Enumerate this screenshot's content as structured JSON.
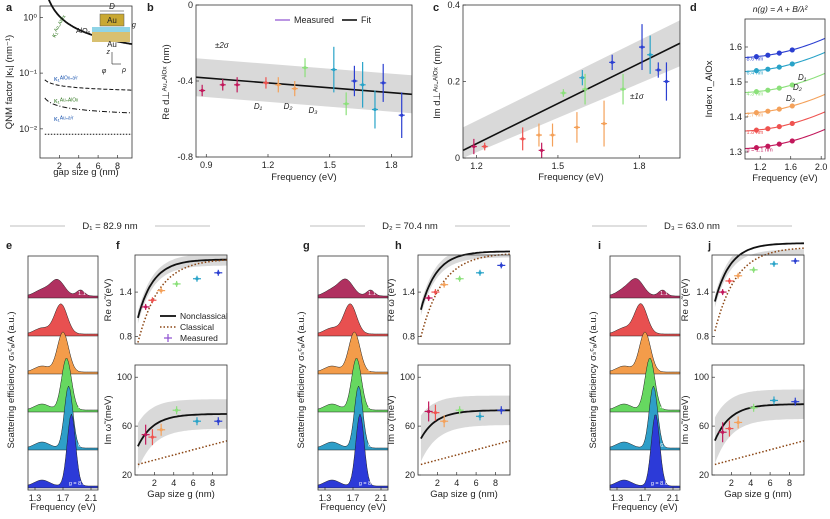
{
  "colors": {
    "gap_palette": [
      "#c2185b",
      "#ef5350",
      "#f4a15a",
      "#8be07a",
      "#29a3c8",
      "#2b3fd1"
    ],
    "band": "#d9d9d9",
    "fit": "#111111",
    "classical": "#8b4513",
    "dist_pal": [
      "#b03060",
      "#e85050",
      "#f39c4a",
      "#66d860",
      "#2e9ec8",
      "#2c3ad8"
    ]
  },
  "chart_data": [
    {
      "panel": "a",
      "type": "line",
      "xlabel": "gap size g (nm)",
      "ylabel": "QNM factor |κ₁| (nm⁻¹)",
      "xlim": [
        0,
        9.5
      ],
      "ylim_log": [
        0.003,
        1.6
      ],
      "xticks": [
        2,
        4,
        6,
        8
      ],
      "yticks": [
        {
          "v": 1,
          "t": "10⁰"
        },
        {
          "v": 0.1,
          "t": "10⁻¹"
        },
        {
          "v": 0.01,
          "t": "10⁻²"
        }
      ],
      "series_labels": [
        "κ₁ᴬᵘ-ᴬˡᴼˣ",
        "κ₁ᴬˡᴼˣ-ᵃⁱʳ",
        "κ₁ᴬᵘ-ᴬˡᴼˣ",
        "κ₁ᴬᵘ-ᵃⁱʳ"
      ],
      "inset": {
        "au": "Au",
        "alox": "AlOₓ",
        "au2": "Au",
        "d": "D",
        "g": "g",
        "phi": "φ",
        "rho": "ρ",
        "z": "z"
      }
    },
    {
      "panel": "b",
      "type": "scatter+line",
      "xlabel": "Frequency (eV)",
      "ylabel": "Re d⊥ᴬᵘ-ᴬˡᴼˣ (nm)",
      "xlim": [
        0.85,
        1.9
      ],
      "ylim": [
        -0.8,
        0.0
      ],
      "xticks": [
        0.9,
        1.2,
        1.5,
        1.8
      ],
      "yticks": [
        0,
        -0.4,
        -0.8
      ],
      "fit": {
        "x0": 0.85,
        "y0": -0.38,
        "x1": 1.9,
        "y1": -0.47
      },
      "band_half": 0.1,
      "band_label": "±2σ",
      "legend": {
        "measured": "Measured",
        "fit": "Fit"
      },
      "ann": [
        "D₁",
        "D₂",
        "D₃"
      ],
      "points": [
        {
          "x": 0.88,
          "y": -0.45,
          "e": 0.03,
          "c": 0
        },
        {
          "x": 0.98,
          "y": -0.42,
          "e": 0.03,
          "c": 0
        },
        {
          "x": 1.05,
          "y": -0.42,
          "e": 0.04,
          "c": 0
        },
        {
          "x": 1.19,
          "y": -0.41,
          "e": 0.03,
          "c": 1
        },
        {
          "x": 1.25,
          "y": -0.42,
          "e": 0.04,
          "c": 2
        },
        {
          "x": 1.33,
          "y": -0.44,
          "e": 0.04,
          "c": 2
        },
        {
          "x": 1.38,
          "y": -0.33,
          "e": 0.05,
          "c": 3
        },
        {
          "x": 1.52,
          "y": -0.34,
          "e": 0.12,
          "c": 4
        },
        {
          "x": 1.58,
          "y": -0.52,
          "e": 0.06,
          "c": 3
        },
        {
          "x": 1.62,
          "y": -0.4,
          "e": 0.08,
          "c": 5
        },
        {
          "x": 1.66,
          "y": -0.42,
          "e": 0.12,
          "c": 4
        },
        {
          "x": 1.72,
          "y": -0.55,
          "e": 0.1,
          "c": 4
        },
        {
          "x": 1.76,
          "y": -0.41,
          "e": 0.1,
          "c": 5
        },
        {
          "x": 1.85,
          "y": -0.58,
          "e": 0.12,
          "c": 5
        }
      ]
    },
    {
      "panel": "c",
      "type": "scatter+line",
      "xlabel": "Frequency (eV)",
      "ylabel": "Im d⊥ᴬᵘ-ᴬˡᴼˣ (nm)",
      "xlim": [
        1.15,
        1.95
      ],
      "ylim": [
        0.0,
        0.4
      ],
      "xticks": [
        1.2,
        1.5,
        1.8
      ],
      "yticks": [
        0,
        0.2,
        0.4
      ],
      "fit": {
        "x0": 1.15,
        "y0": 0.02,
        "x1": 1.95,
        "y1": 0.3
      },
      "band_half": 0.06,
      "band_label": "±1σ",
      "points": [
        {
          "x": 1.19,
          "y": 0.03,
          "e": 0.02,
          "c": 0
        },
        {
          "x": 1.23,
          "y": 0.03,
          "e": 0.01,
          "c": 1
        },
        {
          "x": 1.37,
          "y": 0.05,
          "e": 0.03,
          "c": 1
        },
        {
          "x": 1.43,
          "y": 0.06,
          "e": 0.03,
          "c": 2
        },
        {
          "x": 1.44,
          "y": 0.02,
          "e": 0.02,
          "c": 0
        },
        {
          "x": 1.48,
          "y": 0.06,
          "e": 0.03,
          "c": 2
        },
        {
          "x": 1.52,
          "y": 0.17,
          "e": 0.01,
          "c": 3
        },
        {
          "x": 1.57,
          "y": 0.08,
          "e": 0.04,
          "c": 2
        },
        {
          "x": 1.59,
          "y": 0.21,
          "e": 0.02,
          "c": 4
        },
        {
          "x": 1.6,
          "y": 0.18,
          "e": 0.04,
          "c": 3
        },
        {
          "x": 1.67,
          "y": 0.09,
          "e": 0.06,
          "c": 2
        },
        {
          "x": 1.7,
          "y": 0.25,
          "e": 0.02,
          "c": 5
        },
        {
          "x": 1.74,
          "y": 0.18,
          "e": 0.04,
          "c": 3
        },
        {
          "x": 1.81,
          "y": 0.29,
          "e": 0.06,
          "c": 5
        },
        {
          "x": 1.84,
          "y": 0.27,
          "e": 0.05,
          "c": 4
        },
        {
          "x": 1.87,
          "y": 0.23,
          "e": 0.02,
          "c": 5
        },
        {
          "x": 1.9,
          "y": 0.2,
          "e": 0.05,
          "c": 5
        }
      ]
    },
    {
      "panel": "d",
      "type": "line",
      "title": "n(g) = A + B/λ²",
      "xlabel": "Frequency (eV)",
      "ylabel": "Index n_AlOx",
      "xlim": [
        1.0,
        2.05
      ],
      "ylim": [
        1.28,
        1.68
      ],
      "xticks": [
        1.2,
        1.6,
        2.0
      ],
      "yticks": [
        1.3,
        1.4,
        1.5,
        1.6
      ],
      "gap_labels": [
        "g = 1.1 nm",
        "1.8 nm",
        "2.7 nm",
        "4.3 nm",
        "6.4 nm",
        "8.6 nm"
      ],
      "d_labels": [
        "D₁",
        "D₂",
        "D₃"
      ],
      "curves_base": [
        1.31,
        1.36,
        1.41,
        1.47,
        1.53,
        1.57
      ]
    },
    {
      "type": "section",
      "labels": [
        "D₁ = 82.9 nm",
        "D₂ = 70.4 nm",
        "D₃ = 63.0 nm"
      ]
    },
    {
      "type": "scattering_spectra",
      "panels": [
        "e",
        "g",
        "i"
      ],
      "ylabel": "Scattering efficiency σₛᶜₐ/A (a.u.)",
      "xlabel": "Frequency (eV)",
      "xticks": [
        "1.3",
        "1.7",
        "2.1"
      ],
      "gap_labels": [
        "1.1 nm",
        "1.8 nm",
        "2.7 nm",
        "4.3 nm",
        "6.4 nm",
        "g = 8.6 nm"
      ]
    },
    {
      "type": "re_im_omega",
      "panels": [
        "f",
        "h",
        "j"
      ],
      "re_ylabel": "Re ω̃ (eV)",
      "im_ylabel": "Im ω̃ (meV)",
      "xlabel": "Gap size g (nm)",
      "re_ylim": [
        0.7,
        1.9
      ],
      "im_ylim": [
        20,
        110
      ],
      "xticks": [
        2,
        4,
        6,
        8
      ],
      "re_yticks": [
        0.8,
        1.4
      ],
      "im_yticks": [
        20,
        60,
        100
      ],
      "legend": [
        "Nonclassical",
        "Classical",
        "Measured"
      ],
      "re_measured": [
        [
          {
            "g": 1.1,
            "y": 1.2
          },
          {
            "g": 1.8,
            "y": 1.29
          },
          {
            "g": 2.7,
            "y": 1.42
          },
          {
            "g": 4.3,
            "y": 1.51
          },
          {
            "g": 6.4,
            "y": 1.58
          },
          {
            "g": 8.6,
            "y": 1.66
          }
        ],
        [
          {
            "g": 1.1,
            "y": 1.32
          },
          {
            "g": 1.8,
            "y": 1.4
          },
          {
            "g": 2.7,
            "y": 1.5
          },
          {
            "g": 4.3,
            "y": 1.58
          },
          {
            "g": 6.4,
            "y": 1.66
          },
          {
            "g": 8.6,
            "y": 1.76
          }
        ],
        [
          {
            "g": 1.1,
            "y": 1.4
          },
          {
            "g": 1.8,
            "y": 1.55
          },
          {
            "g": 2.7,
            "y": 1.62
          },
          {
            "g": 4.3,
            "y": 1.7
          },
          {
            "g": 6.4,
            "y": 1.78
          },
          {
            "g": 8.6,
            "y": 1.82
          }
        ]
      ],
      "im_measured": [
        [
          {
            "g": 1.1,
            "y": 53
          },
          {
            "g": 1.8,
            "y": 51
          },
          {
            "g": 2.7,
            "y": 57
          },
          {
            "g": 4.3,
            "y": 73
          },
          {
            "g": 6.4,
            "y": 64
          },
          {
            "g": 8.6,
            "y": 64
          }
        ],
        [
          {
            "g": 1.1,
            "y": 72
          },
          {
            "g": 1.8,
            "y": 71
          },
          {
            "g": 2.7,
            "y": 64
          },
          {
            "g": 4.3,
            "y": 73
          },
          {
            "g": 6.4,
            "y": 68
          },
          {
            "g": 8.6,
            "y": 73
          }
        ],
        [
          {
            "g": 1.1,
            "y": 55
          },
          {
            "g": 1.8,
            "y": 58
          },
          {
            "g": 2.7,
            "y": 63
          },
          {
            "g": 4.3,
            "y": 75
          },
          {
            "g": 6.4,
            "y": 81
          },
          {
            "g": 8.6,
            "y": 80
          }
        ]
      ]
    }
  ],
  "panel_letters": [
    "a",
    "b",
    "c",
    "d",
    "e",
    "f",
    "g",
    "h",
    "i",
    "j"
  ]
}
